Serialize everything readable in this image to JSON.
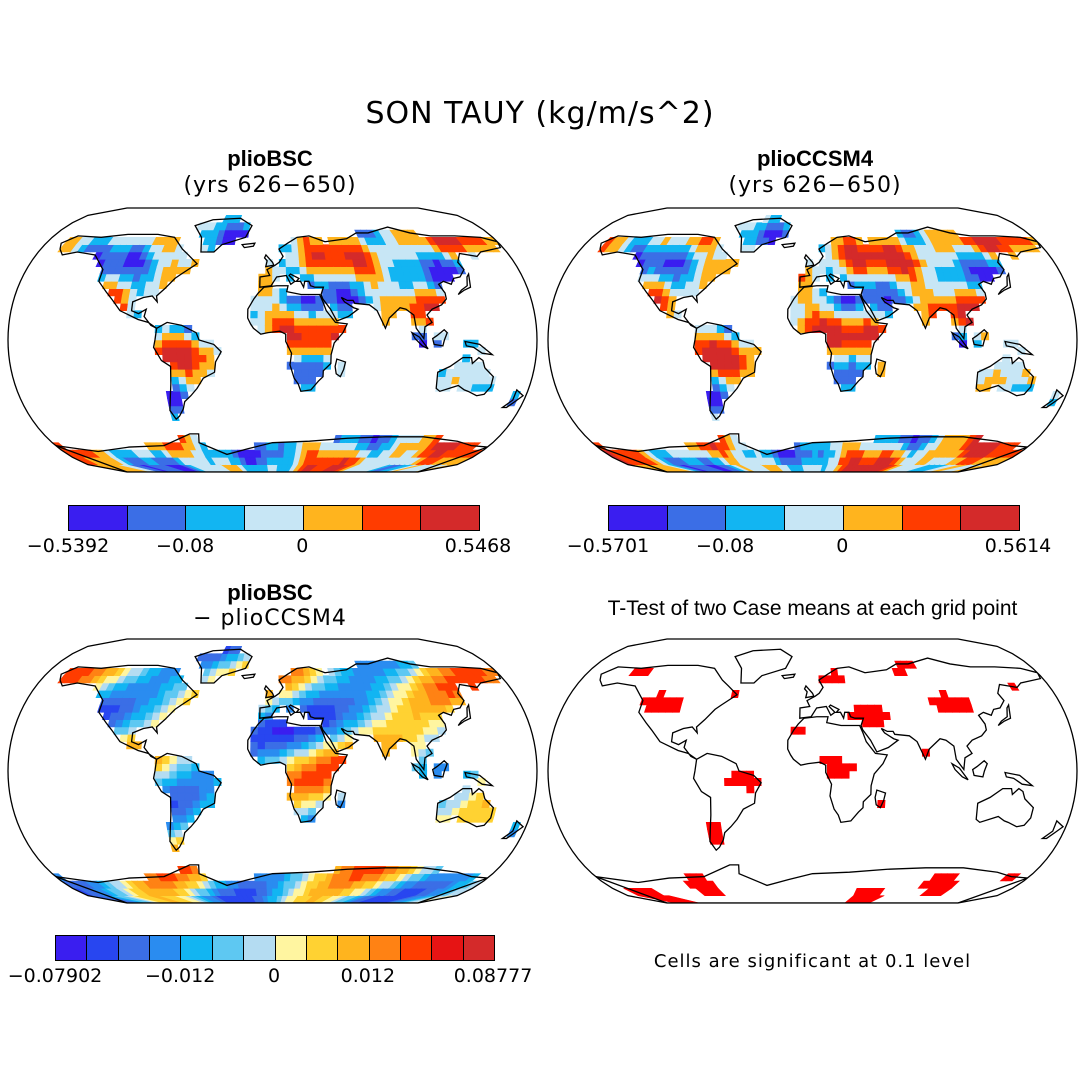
{
  "figure": {
    "title": "SON TAUY (kg/m/s^2)"
  },
  "panels": {
    "bsc": {
      "title": "plioBSC",
      "subtitle": "(yrs 626−650)",
      "colorbar": {
        "colors": [
          "#3a1ef0",
          "#3b6ee6",
          "#12b5f2",
          "#c7e6f5",
          "#ffb41e",
          "#ff3c00",
          "#d42a2a"
        ],
        "ticks": [
          "−0.5392",
          "−0.08",
          "0",
          "0.5468"
        ]
      }
    },
    "ccsm4": {
      "title": "plioCCSM4",
      "subtitle": "(yrs 626−650)",
      "colorbar": {
        "colors": [
          "#3a1ef0",
          "#3b6ee6",
          "#12b5f2",
          "#c7e6f5",
          "#ffb41e",
          "#ff3c00",
          "#d42a2a"
        ],
        "ticks": [
          "−0.5701",
          "−0.08",
          "0",
          "0.5614"
        ]
      }
    },
    "diff": {
      "title": "plioBSC",
      "subtitle": "− plioCCSM4",
      "colorbar": {
        "colors": [
          "#3a1ef0",
          "#2846f0",
          "#3b6ee6",
          "#2a8cf0",
          "#12b5f2",
          "#5ec8f2",
          "#b4dcf2",
          "#fff5a0",
          "#ffd232",
          "#ffb41e",
          "#ff8214",
          "#ff3c00",
          "#e61414",
          "#d42a2a"
        ],
        "ticks": [
          "−0.07902",
          "−0.012",
          "0",
          "0.012",
          "0.08777"
        ]
      }
    },
    "ttest": {
      "title": "T-Test of two Case means at each grid point",
      "note": "Cells are significant at 0.1 level",
      "significant_color": "#ff0000"
    }
  }
}
